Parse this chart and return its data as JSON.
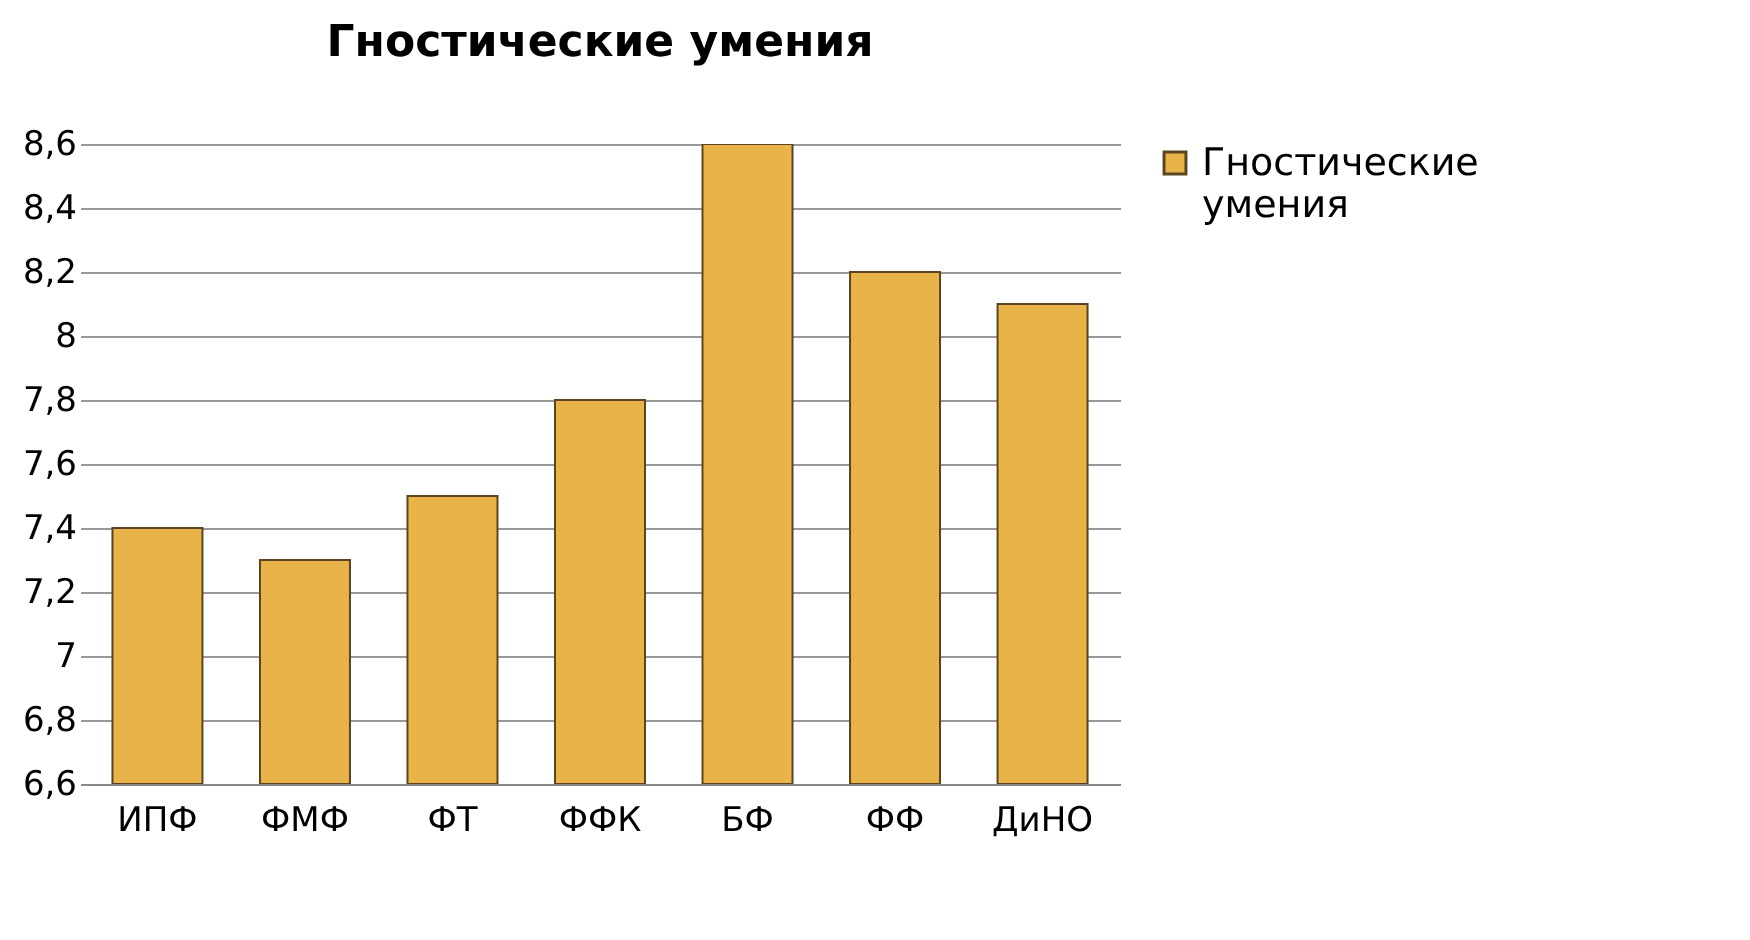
{
  "chart_data": {
    "type": "bar",
    "title": "Гностические умения",
    "categories": [
      "ИПФ",
      "ФМФ",
      "ФТ",
      "ФФК",
      "БФ",
      "ФФ",
      "ДиНО"
    ],
    "series": [
      {
        "name": "Гностические умения",
        "color": "#e8b44a",
        "values": [
          7.4,
          7.3,
          7.5,
          7.8,
          8.6,
          8.2,
          8.1
        ]
      }
    ],
    "ylim": [
      6.6,
      8.6
    ],
    "yticks": [
      {
        "value": 6.6,
        "label": "6,6"
      },
      {
        "value": 6.8,
        "label": "6,8"
      },
      7,
      {
        "value": 7.2,
        "label": "7,2"
      },
      {
        "value": 7.4,
        "label": "7,4"
      },
      {
        "value": 7.6,
        "label": "7,6"
      },
      {
        "value": 7.8,
        "label": "7,8"
      },
      8,
      {
        "value": 8.2,
        "label": "8,2"
      },
      {
        "value": 8.4,
        "label": "8,4"
      },
      {
        "value": 8.6,
        "label": "8,6"
      }
    ],
    "grid": "y",
    "legend": "right"
  }
}
